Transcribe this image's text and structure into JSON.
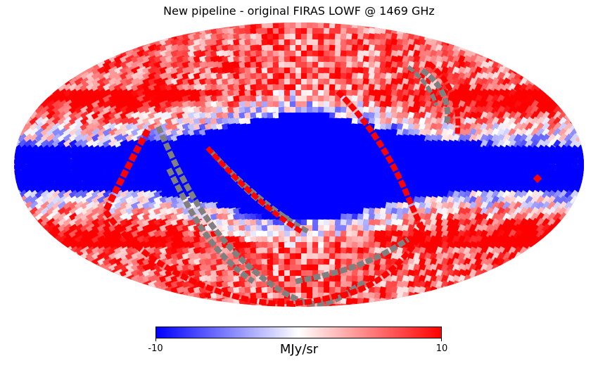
{
  "title": "New pipeline - original FIRAS LOWF @ 1469 GHz",
  "projection": "mollweide",
  "colormap": {
    "name": "bwr",
    "stops": [
      "#0000ff",
      "#ffffff",
      "#ff0000"
    ],
    "min": -10,
    "max": 10,
    "min_label": "-10",
    "max_label": "10",
    "unit": "MJy/sr"
  },
  "masked_color": "#808080",
  "map_description_colors": {
    "galactic_plane": "#0000ff",
    "high_latitude": "#ff0000",
    "masked_pixels": "#808080"
  }
}
